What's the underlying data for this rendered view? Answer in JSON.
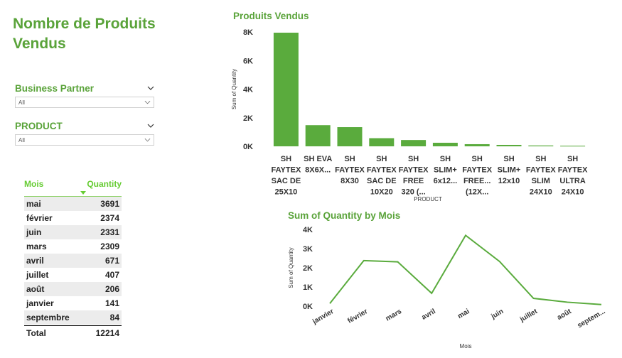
{
  "title": "Nombre de Produits Vendus",
  "slicers": [
    {
      "label": "Business Partner",
      "value": "All"
    },
    {
      "label": "PRODUCT",
      "value": "All"
    }
  ],
  "table": {
    "headers": [
      "Mois",
      "Quantity"
    ],
    "rows": [
      [
        "mai",
        "3691"
      ],
      [
        "février",
        "2374"
      ],
      [
        "juin",
        "2331"
      ],
      [
        "mars",
        "2309"
      ],
      [
        "avril",
        "671"
      ],
      [
        "juillet",
        "407"
      ],
      [
        "août",
        "206"
      ],
      [
        "janvier",
        "141"
      ],
      [
        "septembre",
        "84"
      ]
    ],
    "total": [
      "Total",
      "12214"
    ]
  },
  "colors": {
    "accent": "#5aa33a",
    "bar": "#5aab3d",
    "header": "#66cc33"
  },
  "chart_data": [
    {
      "type": "bar",
      "title": "Produits Vendus",
      "xlabel": "PRODUCT",
      "ylabel": "Sum of Quantity",
      "ylim": [
        0,
        8000
      ],
      "yticks": [
        "0K",
        "2K",
        "4K",
        "6K",
        "8K"
      ],
      "categories": [
        [
          "SH",
          "FAYTEX",
          "SAC DE",
          "25X10"
        ],
        [
          "SH EVA",
          "8X6X..."
        ],
        [
          "SH",
          "FAYTEX",
          "8X30"
        ],
        [
          "SH",
          "FAYTEX",
          "SAC DE",
          "10X20"
        ],
        [
          "SH",
          "FAYTEX",
          "FREE",
          "320 (..."
        ],
        [
          "SH",
          "SLIM+",
          "6x12..."
        ],
        [
          "SH",
          "FAYTEX",
          "FREE...",
          "(12X..."
        ],
        [
          "SH",
          "SLIM+",
          "12x10"
        ],
        [
          "SH",
          "FAYTEX",
          "SLIM",
          "24X10"
        ],
        [
          "SH",
          "FAYTEX",
          "ULTRA",
          "24X10"
        ]
      ],
      "values": [
        7950,
        1480,
        1340,
        570,
        440,
        250,
        150,
        100,
        60,
        40
      ]
    },
    {
      "type": "line",
      "title": "Sum of Quantity by Mois",
      "xlabel": "Mois",
      "ylabel": "Sum of Quantity",
      "ylim": [
        0,
        4000
      ],
      "yticks": [
        "0K",
        "1K",
        "2K",
        "3K",
        "4K"
      ],
      "categories": [
        "janvier",
        "février",
        "mars",
        "avril",
        "mai",
        "juin",
        "juillet",
        "août",
        "septem..."
      ],
      "values": [
        141,
        2374,
        2309,
        671,
        3691,
        2331,
        407,
        206,
        84
      ]
    }
  ]
}
